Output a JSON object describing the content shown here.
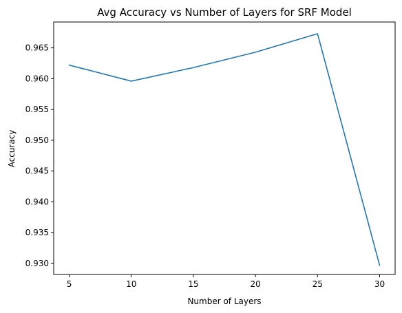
{
  "chart_data": {
    "type": "line",
    "title": "Avg Accuracy vs Number of Layers for SRF Model",
    "xlabel": "Number of Layers",
    "ylabel": "Accuracy",
    "x": [
      5,
      10,
      15,
      20,
      25,
      30
    ],
    "series": [
      {
        "values": [
          0.9622,
          0.9596,
          0.9618,
          0.9643,
          0.9673,
          0.9297
        ]
      }
    ],
    "xlim": [
      3.75,
      31.25
    ],
    "ylim": [
      0.9282,
      0.9692
    ],
    "x_ticks": [
      5,
      10,
      15,
      20,
      25,
      30
    ],
    "x_tick_labels": [
      "5",
      "10",
      "15",
      "20",
      "25",
      "30"
    ],
    "y_ticks": [
      0.93,
      0.935,
      0.94,
      0.945,
      0.95,
      0.955,
      0.96,
      0.965
    ],
    "y_tick_labels": [
      "0.930",
      "0.935",
      "0.940",
      "0.945",
      "0.950",
      "0.955",
      "0.960",
      "0.965"
    ],
    "grid": false,
    "legend": "none",
    "line_color": "#1f77b4"
  }
}
